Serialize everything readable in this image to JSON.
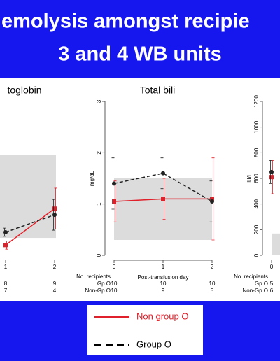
{
  "slide": {
    "title_lines": [
      "emolysis amongst recipie",
      "3 and 4 WB units"
    ]
  },
  "chart_data": [
    {
      "type": "line",
      "title": "toglobin",
      "categories": [
        null,
        "1",
        "2"
      ],
      "ylim": [
        0,
        3
      ],
      "ref_range": [
        0.34,
        1.95
      ],
      "series": [
        {
          "name": "Non group O",
          "color": "#e0202a",
          "dash": false,
          "values": [
            null,
            0.2,
            0.91
          ],
          "errors": [
            null,
            0.08,
            0.4
          ]
        },
        {
          "name": "Group O",
          "color": "#222222",
          "dash": true,
          "values": [
            null,
            0.45,
            0.79
          ],
          "errors": [
            null,
            0.08,
            0.3
          ]
        }
      ],
      "count_table": {
        "rows": [
          {
            "values": [
              null,
              8,
              9
            ]
          },
          {
            "values": [
              null,
              7,
              4
            ]
          }
        ]
      }
    },
    {
      "type": "line",
      "title": "Total bili",
      "ylabel": "mg/dL",
      "xlabel": "Post-transfusion day",
      "categories": [
        "0",
        "1",
        "2"
      ],
      "ylim": [
        0,
        3
      ],
      "yticks": [
        0,
        1,
        2,
        3
      ],
      "ref_range": [
        0.3,
        1.5
      ],
      "series": [
        {
          "name": "Non group O",
          "color": "#e0202a",
          "dash": false,
          "values": [
            1.05,
            1.1,
            1.1
          ],
          "errors": [
            0.4,
            0.4,
            0.8
          ]
        },
        {
          "name": "Group O",
          "color": "#222222",
          "dash": true,
          "values": [
            1.4,
            1.6,
            1.05
          ],
          "errors": [
            0.5,
            0.3,
            0.4
          ]
        }
      ],
      "count_table": {
        "header": "No. recipients",
        "rows": [
          {
            "label": "Gp O",
            "values": [
              10,
              10,
              10
            ]
          },
          {
            "label": "Non-Gp O",
            "values": [
              10,
              9,
              5
            ]
          }
        ]
      }
    },
    {
      "type": "line",
      "ylabel": "IU/L",
      "categories": [
        "0"
      ],
      "ylim": [
        0,
        1200
      ],
      "yticks": [
        0,
        200,
        400,
        600,
        800,
        1000,
        1200
      ],
      "ref_range": [
        0,
        170
      ],
      "series": [
        {
          "name": "Non group O",
          "color": "#e0202a",
          "dash": false,
          "values": [
            610
          ],
          "errors": [
            130
          ]
        },
        {
          "name": "Group O",
          "color": "#222222",
          "dash": true,
          "values": [
            650
          ],
          "errors": [
            90
          ]
        }
      ],
      "count_table": {
        "header": "No. recipients",
        "rows": [
          {
            "label": "Gp O",
            "values": [
              5
            ]
          },
          {
            "label": "Non-Gp O",
            "values": [
              6
            ]
          }
        ]
      }
    }
  ]
}
